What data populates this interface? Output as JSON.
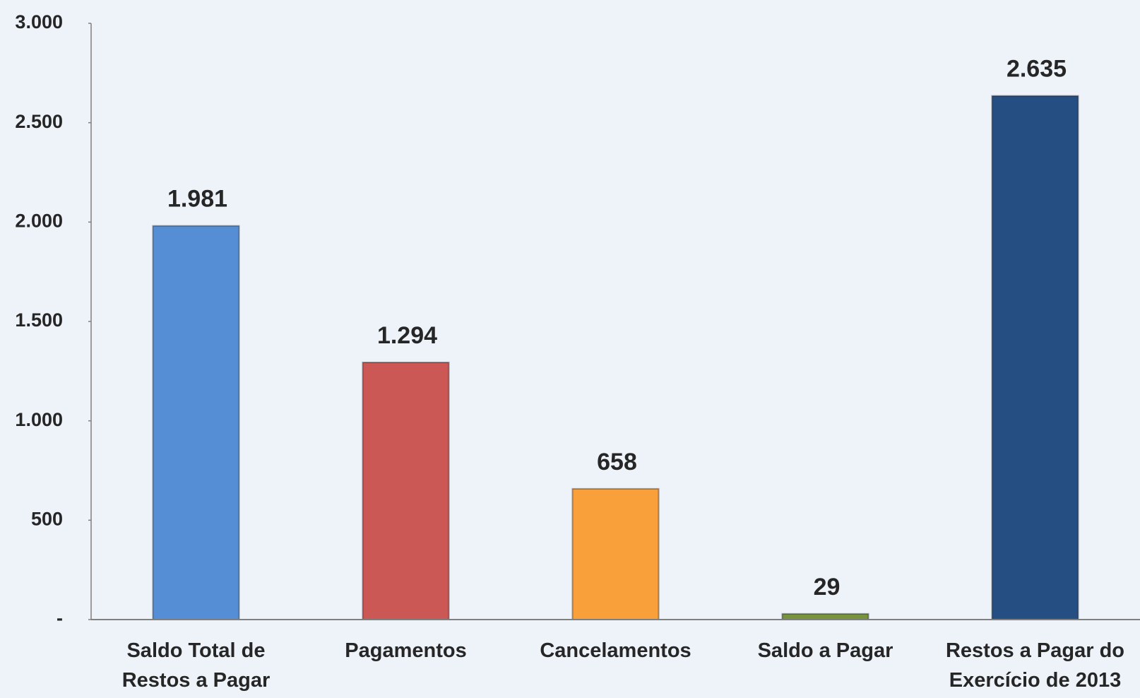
{
  "chart_data": {
    "type": "bar",
    "categories": [
      "Saldo Total de\nRestos a Pagar",
      "Pagamentos",
      "Cancelamentos",
      "Saldo a Pagar",
      "Restos a Pagar do\nExercício de 2013"
    ],
    "values": [
      1981,
      1294,
      658,
      29,
      2635
    ],
    "value_labels": [
      "1.981",
      "1.294",
      "658",
      "29",
      "2.635"
    ],
    "colors": [
      "#558ed5",
      "#cc5856",
      "#f9a03a",
      "#77933c",
      "#254f82"
    ],
    "ylim": [
      0,
      3000
    ],
    "yticks": [
      {
        "value": 0,
        "label": "-"
      },
      500,
      {
        "value": 1000,
        "label": "1.000"
      },
      {
        "value": 1500,
        "label": "1.500"
      },
      {
        "value": 2000,
        "label": "2.000"
      },
      {
        "value": 2500,
        "label": "2.500"
      },
      {
        "value": 3000,
        "label": "3.000"
      }
    ],
    "grid": false
  }
}
